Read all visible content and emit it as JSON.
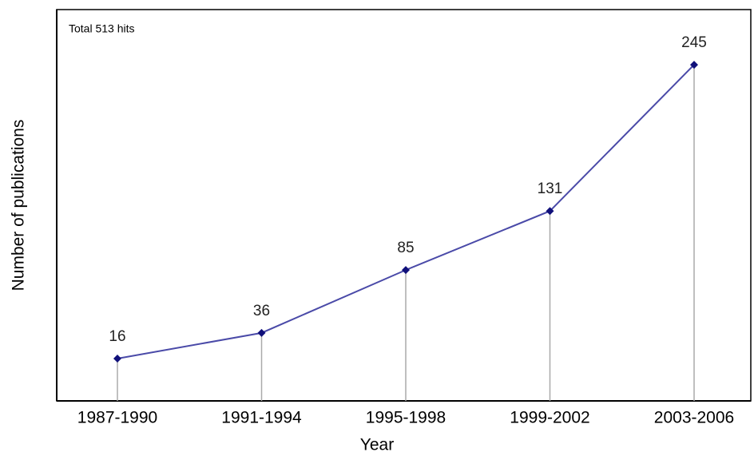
{
  "chart_data": {
    "type": "line",
    "annotation": "Total 513 hits",
    "x_label": "Year",
    "y_label": "Number of publications",
    "categories": [
      "1987-1990",
      "1991-1994",
      "1995-1998",
      "1999-2002",
      "2003-2006"
    ],
    "values": [
      16,
      36,
      85,
      131,
      245
    ],
    "color": "#4a4aa8",
    "marker_color": "#10107a",
    "ylim": [
      -17,
      288
    ],
    "grid": false
  }
}
